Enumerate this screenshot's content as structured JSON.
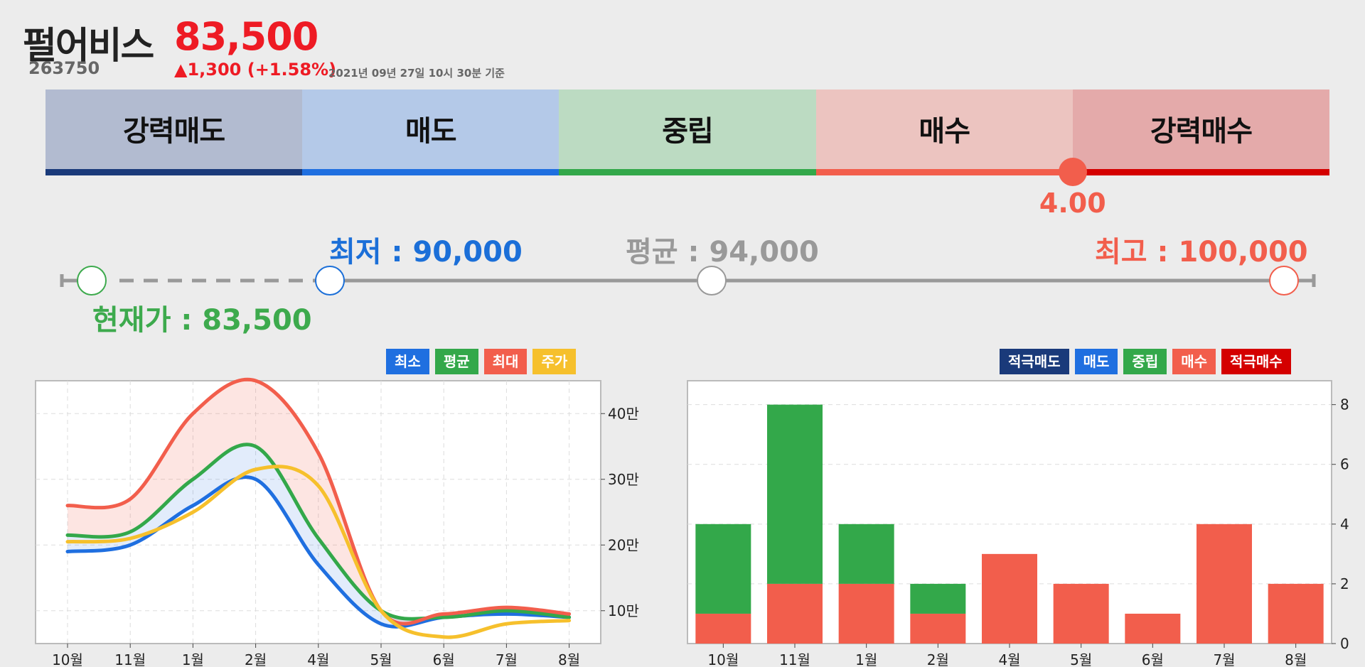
{
  "header": {
    "name": "펄어비스",
    "code": "263750",
    "price": "83,500",
    "change": "▲1,300 (+1.58%)",
    "timestamp": "2021년 09년 27일 10시 30분 기준"
  },
  "rating": {
    "segments": [
      {
        "label": "강력매도",
        "bg": "#b2bbd0",
        "line": "#1a3a7a"
      },
      {
        "label": "매도",
        "bg": "#b4c9e8",
        "line": "#1f6fe0"
      },
      {
        "label": "중립",
        "bg": "#bcdbc2",
        "line": "#33a84a"
      },
      {
        "label": "매수",
        "bg": "#ecc4c0",
        "line": "#f25e4c"
      },
      {
        "label": "강력매수",
        "bg": "#e4aaaa",
        "line": "#d40000"
      }
    ],
    "value": "4.00",
    "score": 4.0
  },
  "target": {
    "low_label": "최저 : 90,000",
    "avg_label": "평균 : 94,000",
    "high_label": "최고 : 100,000",
    "current_label": "현재가 : 83,500"
  },
  "colors": {
    "min": "#1f6fe0",
    "avg": "#33a84a",
    "max": "#f25e4c",
    "price": "#f6c02c",
    "strong_sell": "#1a3a7a",
    "strong_buy": "#d40000"
  },
  "chart_data": [
    {
      "type": "line",
      "x": [
        "10월",
        "11월",
        "1월",
        "2월",
        "4월",
        "5월",
        "6월",
        "7월",
        "8월"
      ],
      "series": [
        {
          "name": "최소",
          "values": [
            19,
            20,
            26,
            30,
            17,
            8,
            9,
            9.5,
            9
          ]
        },
        {
          "name": "평균",
          "values": [
            21.5,
            22,
            30,
            35,
            21,
            10,
            9,
            10,
            9
          ]
        },
        {
          "name": "최대",
          "values": [
            26,
            27,
            40,
            45,
            34,
            10,
            9.5,
            10.5,
            9.5
          ]
        },
        {
          "name": "주가",
          "values": [
            20.5,
            21,
            25,
            31.5,
            29,
            10,
            6,
            8,
            8.5
          ]
        }
      ],
      "yticks": [
        "10만",
        "20만",
        "30만",
        "40만"
      ],
      "ylim": [
        5,
        45
      ],
      "legend": "top-right",
      "grid": true
    },
    {
      "type": "bar",
      "stacked": true,
      "categories": [
        "10월",
        "11월",
        "1월",
        "2월",
        "4월",
        "5월",
        "6월",
        "7월",
        "8월"
      ],
      "series": [
        {
          "name": "적극매도",
          "values": [
            0,
            0,
            0,
            0,
            0,
            0,
            0,
            0,
            0
          ]
        },
        {
          "name": "매도",
          "values": [
            0,
            0,
            0,
            0,
            0,
            0,
            0,
            0,
            0
          ]
        },
        {
          "name": "중립",
          "values": [
            3,
            6,
            2,
            1,
            0,
            0,
            0,
            0,
            0
          ]
        },
        {
          "name": "매수",
          "values": [
            1,
            2,
            2,
            1,
            3,
            2,
            1,
            4,
            2
          ]
        },
        {
          "name": "적극매수",
          "values": [
            0,
            0,
            0,
            0,
            0,
            0,
            0,
            0,
            0
          ]
        }
      ],
      "yticks": [
        "0",
        "2",
        "4",
        "6",
        "8"
      ],
      "ylim": [
        0,
        8.8
      ],
      "legend": "top-right",
      "grid": true
    }
  ]
}
